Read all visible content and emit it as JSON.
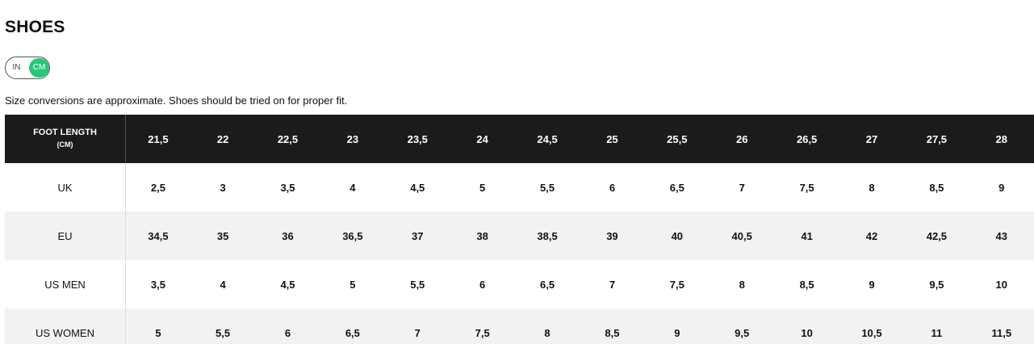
{
  "header": {
    "title": "SHOES"
  },
  "unit_toggle": {
    "options": [
      "IN",
      "CM"
    ],
    "selected": 1
  },
  "note": "Size conversions are approximate. Shoes should be tried on for proper fit.",
  "table": {
    "header_label": "FOOT LENGTH",
    "header_unit": "(CM)",
    "columns": [
      "21,5",
      "22",
      "22,5",
      "23",
      "23,5",
      "24",
      "24,5",
      "25",
      "25,5",
      "26",
      "26,5",
      "27",
      "27,5",
      "28"
    ],
    "rows": [
      {
        "label": "UK",
        "values": [
          "2,5",
          "3",
          "3,5",
          "4",
          "4,5",
          "5",
          "5,5",
          "6",
          "6,5",
          "7",
          "7,5",
          "8",
          "8,5",
          "9"
        ]
      },
      {
        "label": "EU",
        "values": [
          "34,5",
          "35",
          "36",
          "36,5",
          "37",
          "38",
          "38,5",
          "39",
          "40",
          "40,5",
          "41",
          "42",
          "42,5",
          "43"
        ]
      },
      {
        "label": "US MEN",
        "values": [
          "3,5",
          "4",
          "4,5",
          "5",
          "5,5",
          "6",
          "6,5",
          "7",
          "7,5",
          "8",
          "8,5",
          "9",
          "9,5",
          "10"
        ]
      },
      {
        "label": "US WOMEN",
        "values": [
          "5",
          "5,5",
          "6",
          "6,5",
          "7",
          "7,5",
          "8",
          "8,5",
          "9",
          "9,5",
          "10",
          "10,5",
          "11",
          "11,5"
        ]
      }
    ]
  }
}
